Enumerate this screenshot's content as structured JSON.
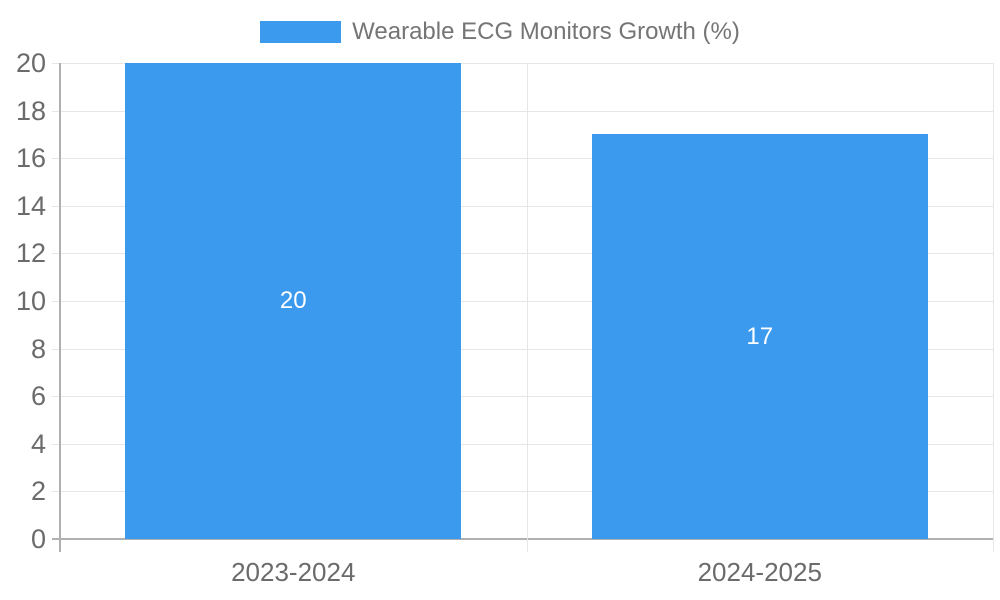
{
  "chart_data": {
    "type": "bar",
    "title": "",
    "legend_label": "Wearable ECG Monitors Growth (%)",
    "legend_position": "top",
    "categories": [
      "2023-2024",
      "2024-2025"
    ],
    "values": [
      20,
      17
    ],
    "bar_value_labels": [
      "20",
      "17"
    ],
    "ylabel": "",
    "xlabel": "",
    "ylim": [
      0,
      20
    ],
    "ytick_step": 2,
    "yticks": [
      0,
      2,
      4,
      6,
      8,
      10,
      12,
      14,
      16,
      18,
      20
    ],
    "grid": true,
    "bar_width_fraction": 0.72,
    "colors": {
      "bar": "#3B99EE",
      "bar_value_text": "#FFFFFF",
      "gridline": "#E6E6E6",
      "axis": "#B0B0B0",
      "tick_text": "#6B6B6B",
      "legend_text": "#757575",
      "background": "#FFFFFF"
    }
  }
}
